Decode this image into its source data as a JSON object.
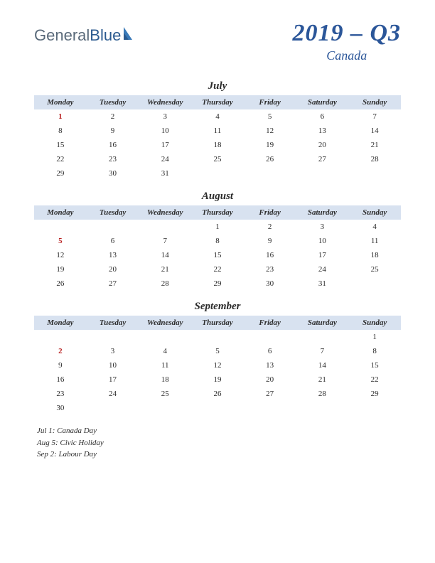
{
  "logo": {
    "general": "General",
    "blue": "Blue"
  },
  "header": {
    "quarter": "2019 – Q3",
    "country": "Canada"
  },
  "colors": {
    "header_bg": "#d8e2f0",
    "title_color": "#2b5699",
    "holiday_color": "#b82020",
    "text_color": "#2b2b2b",
    "logo_gray": "#5a6a7a",
    "logo_blue": "#2b5a8f"
  },
  "weekdays": [
    "Monday",
    "Tuesday",
    "Wednesday",
    "Thursday",
    "Friday",
    "Saturday",
    "Sunday"
  ],
  "months": [
    {
      "name": "July",
      "weeks": [
        [
          {
            "d": "1",
            "h": true
          },
          {
            "d": "2"
          },
          {
            "d": "3"
          },
          {
            "d": "4"
          },
          {
            "d": "5"
          },
          {
            "d": "6"
          },
          {
            "d": "7"
          }
        ],
        [
          {
            "d": "8"
          },
          {
            "d": "9"
          },
          {
            "d": "10"
          },
          {
            "d": "11"
          },
          {
            "d": "12"
          },
          {
            "d": "13"
          },
          {
            "d": "14"
          }
        ],
        [
          {
            "d": "15"
          },
          {
            "d": "16"
          },
          {
            "d": "17"
          },
          {
            "d": "18"
          },
          {
            "d": "19"
          },
          {
            "d": "20"
          },
          {
            "d": "21"
          }
        ],
        [
          {
            "d": "22"
          },
          {
            "d": "23"
          },
          {
            "d": "24"
          },
          {
            "d": "25"
          },
          {
            "d": "26"
          },
          {
            "d": "27"
          },
          {
            "d": "28"
          }
        ],
        [
          {
            "d": "29"
          },
          {
            "d": "30"
          },
          {
            "d": "31"
          },
          {
            "d": ""
          },
          {
            "d": ""
          },
          {
            "d": ""
          },
          {
            "d": ""
          }
        ]
      ]
    },
    {
      "name": "August",
      "weeks": [
        [
          {
            "d": ""
          },
          {
            "d": ""
          },
          {
            "d": ""
          },
          {
            "d": "1"
          },
          {
            "d": "2"
          },
          {
            "d": "3"
          },
          {
            "d": "4"
          }
        ],
        [
          {
            "d": "5",
            "h": true
          },
          {
            "d": "6"
          },
          {
            "d": "7"
          },
          {
            "d": "8"
          },
          {
            "d": "9"
          },
          {
            "d": "10"
          },
          {
            "d": "11"
          }
        ],
        [
          {
            "d": "12"
          },
          {
            "d": "13"
          },
          {
            "d": "14"
          },
          {
            "d": "15"
          },
          {
            "d": "16"
          },
          {
            "d": "17"
          },
          {
            "d": "18"
          }
        ],
        [
          {
            "d": "19"
          },
          {
            "d": "20"
          },
          {
            "d": "21"
          },
          {
            "d": "22"
          },
          {
            "d": "23"
          },
          {
            "d": "24"
          },
          {
            "d": "25"
          }
        ],
        [
          {
            "d": "26"
          },
          {
            "d": "27"
          },
          {
            "d": "28"
          },
          {
            "d": "29"
          },
          {
            "d": "30"
          },
          {
            "d": "31"
          },
          {
            "d": ""
          }
        ]
      ]
    },
    {
      "name": "September",
      "weeks": [
        [
          {
            "d": ""
          },
          {
            "d": ""
          },
          {
            "d": ""
          },
          {
            "d": ""
          },
          {
            "d": ""
          },
          {
            "d": ""
          },
          {
            "d": "1"
          }
        ],
        [
          {
            "d": "2",
            "h": true
          },
          {
            "d": "3"
          },
          {
            "d": "4"
          },
          {
            "d": "5"
          },
          {
            "d": "6"
          },
          {
            "d": "7"
          },
          {
            "d": "8"
          }
        ],
        [
          {
            "d": "9"
          },
          {
            "d": "10"
          },
          {
            "d": "11"
          },
          {
            "d": "12"
          },
          {
            "d": "13"
          },
          {
            "d": "14"
          },
          {
            "d": "15"
          }
        ],
        [
          {
            "d": "16"
          },
          {
            "d": "17"
          },
          {
            "d": "18"
          },
          {
            "d": "19"
          },
          {
            "d": "20"
          },
          {
            "d": "21"
          },
          {
            "d": "22"
          }
        ],
        [
          {
            "d": "23"
          },
          {
            "d": "24"
          },
          {
            "d": "25"
          },
          {
            "d": "26"
          },
          {
            "d": "27"
          },
          {
            "d": "28"
          },
          {
            "d": "29"
          }
        ],
        [
          {
            "d": "30"
          },
          {
            "d": ""
          },
          {
            "d": ""
          },
          {
            "d": ""
          },
          {
            "d": ""
          },
          {
            "d": ""
          },
          {
            "d": ""
          }
        ]
      ]
    }
  ],
  "holidays": [
    "Jul 1: Canada Day",
    "Aug 5: Civic Holiday",
    "Sep 2: Labour Day"
  ]
}
